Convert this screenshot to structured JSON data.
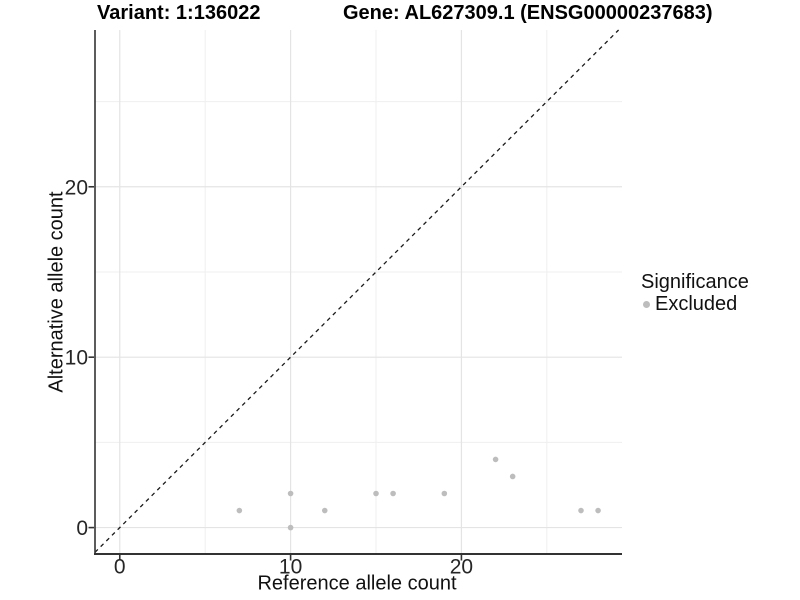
{
  "chart_data": {
    "type": "scatter",
    "titles": {
      "left": "Variant: 1:136022",
      "right": "Gene: AL627309.1 (ENSG00000237683)"
    },
    "xlabel": "Reference allele count",
    "ylabel": "Alternative allele count",
    "xlim": [
      -1.45,
      29.4
    ],
    "ylim": [
      -1.55,
      29.2
    ],
    "x_ticks": [
      0,
      10,
      20
    ],
    "y_ticks": [
      0,
      10,
      20
    ],
    "x_minor_gridlines": [
      5,
      15,
      25
    ],
    "y_minor_gridlines": [
      5,
      15,
      25
    ],
    "grid": "major-and-minor",
    "identity_line": {
      "style": "dashed",
      "equation": "y = x",
      "color": "#1a1a1a"
    },
    "series": [
      {
        "name": "Excluded",
        "color": "#bdbdbd",
        "points": [
          [
            7,
            1
          ],
          [
            10,
            0
          ],
          [
            10,
            2
          ],
          [
            12,
            1
          ],
          [
            15,
            2
          ],
          [
            16,
            2
          ],
          [
            19,
            2
          ],
          [
            22,
            4
          ],
          [
            23,
            3
          ],
          [
            27,
            1
          ],
          [
            28,
            1
          ]
        ]
      }
    ],
    "legend": {
      "title": "Significance",
      "position": "right",
      "items": [
        {
          "label": "Excluded",
          "color": "#bdbdbd"
        }
      ]
    }
  },
  "style": {
    "major_grid_color": "#e4e4e4",
    "minor_grid_color": "#efefef",
    "axis_line_color": "#333333",
    "tick_color": "#333333",
    "point_radius": 2.8
  }
}
